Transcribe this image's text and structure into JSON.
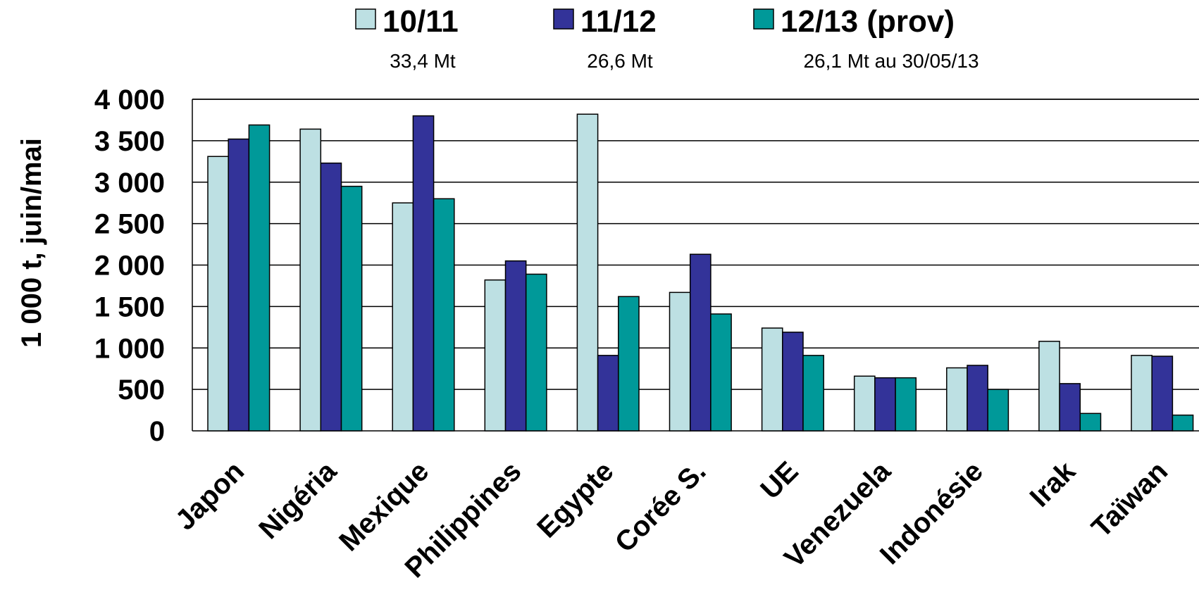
{
  "chart_data": {
    "type": "bar",
    "ylabel": "1 000 t, juin/mai",
    "xlabel": "",
    "ylim": [
      0,
      4000
    ],
    "yticks": [
      0,
      500,
      1000,
      1500,
      2000,
      2500,
      3000,
      3500,
      4000
    ],
    "ytick_labels": [
      "0",
      "500",
      "1 000",
      "1 500",
      "2 000",
      "2 500",
      "3 000",
      "3 500",
      "4 000"
    ],
    "grid": true,
    "legend_position": "top",
    "categories": [
      "Japon",
      "Nigéria",
      "Mexique",
      "Philippines",
      "Egypte",
      "Corée S.",
      "UE",
      "Venezuela",
      "Indonésie",
      "Irak",
      "Taïwan"
    ],
    "series": [
      {
        "name": "10/11",
        "subtitle": "33,4 Mt",
        "color": "#bde0e3",
        "values": [
          3310,
          3640,
          2750,
          1820,
          3820,
          1670,
          1240,
          660,
          760,
          1080,
          910
        ]
      },
      {
        "name": "11/12",
        "subtitle": "26,6 Mt",
        "color": "#333399",
        "values": [
          3520,
          3230,
          3800,
          2050,
          910,
          2130,
          1190,
          640,
          790,
          570,
          900
        ]
      },
      {
        "name": "12/13 (prov)",
        "subtitle": "26,1 Mt au 30/05/13",
        "color": "#009999",
        "values": [
          3690,
          2950,
          2800,
          1890,
          1620,
          1410,
          910,
          640,
          500,
          210,
          190
        ]
      }
    ]
  }
}
